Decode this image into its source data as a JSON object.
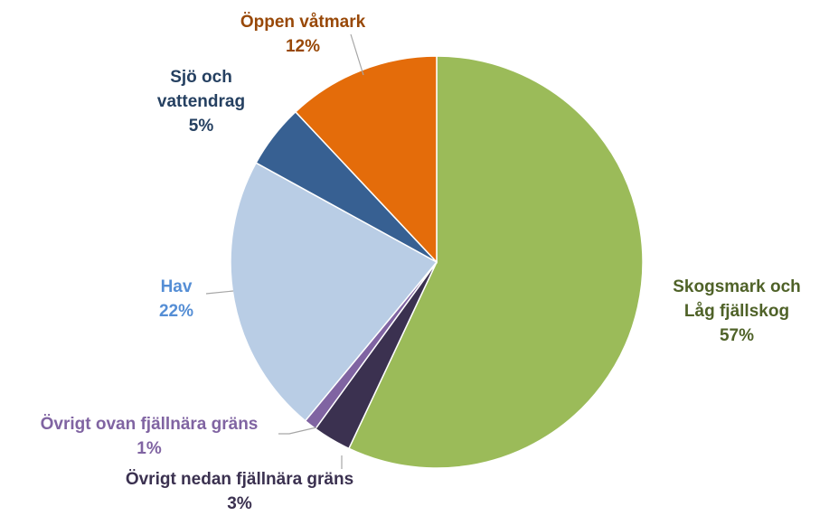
{
  "chart_data": {
    "type": "pie",
    "categories": [
      "Skogsmark och Låg fjällskog",
      "Övrigt nedan fjällnära gräns",
      "Övrigt ovan fjällnära gräns",
      "Hav",
      "Sjö och vattendrag",
      "Öppen våtmark"
    ],
    "values": [
      57,
      3,
      1,
      22,
      5,
      12
    ],
    "value_labels": [
      "57%",
      "3%",
      "1%",
      "22%",
      "5%",
      "12%"
    ],
    "colors": [
      "#9bbb59",
      "#3b3150",
      "#8064a2",
      "#b9cde5",
      "#376092",
      "#e46c0a"
    ],
    "label_colors": [
      "#4f6228",
      "#3b3150",
      "#8064a2",
      "#558ed5",
      "#254061",
      "#984807"
    ]
  }
}
